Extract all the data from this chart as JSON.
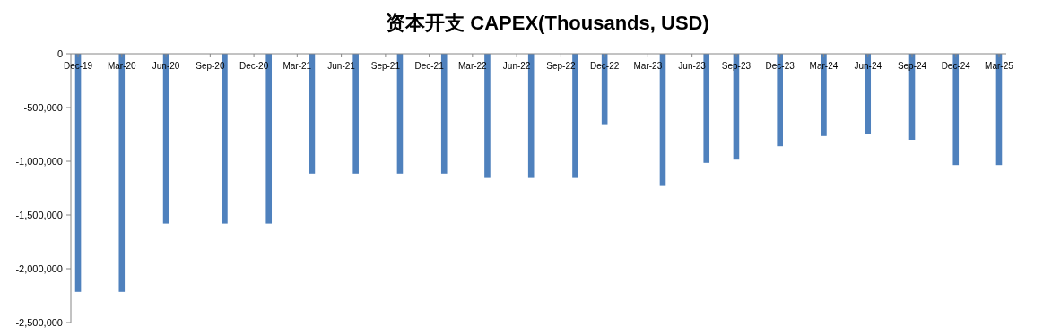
{
  "chart_data": {
    "type": "bar",
    "title": "资本开支 CAPEX(Thousands, USD)",
    "x": [
      "2019-12",
      "2020-03",
      "2020-06",
      "2020-10",
      "2021-01",
      "2021-04",
      "2021-07",
      "2021-10",
      "2022-01",
      "2022-04",
      "2022-07",
      "2022-10",
      "2022-12",
      "2023-04",
      "2023-07",
      "2023-09",
      "2023-12",
      "2024-03",
      "2024-06",
      "2024-09",
      "2024-12",
      "2025-03"
    ],
    "values": [
      -2215000,
      -2215000,
      -1580000,
      -1580000,
      -1580000,
      -1115000,
      -1115000,
      -1115000,
      -1115000,
      -1155000,
      -1155000,
      -1155000,
      -655000,
      -1230000,
      -1015000,
      -985000,
      -860000,
      -765000,
      -750000,
      -800000,
      -1035000,
      -1035000
    ],
    "color": "#4f81bd",
    "xlim": [
      "2019-11-16",
      "2025-03-16"
    ],
    "xticks": [
      {
        "value": "2019-12",
        "label": "Dec-19"
      },
      {
        "value": "2020-03",
        "label": "Mar-20"
      },
      {
        "value": "2020-06",
        "label": "Jun-20"
      },
      {
        "value": "2020-09",
        "label": "Sep-20"
      },
      {
        "value": "2020-12",
        "label": "Dec-20"
      },
      {
        "value": "2021-03",
        "label": "Mar-21"
      },
      {
        "value": "2021-06",
        "label": "Jun-21"
      },
      {
        "value": "2021-09",
        "label": "Sep-21"
      },
      {
        "value": "2021-12",
        "label": "Dec-21"
      },
      {
        "value": "2022-03",
        "label": "Mar-22"
      },
      {
        "value": "2022-06",
        "label": "Jun-22"
      },
      {
        "value": "2022-09",
        "label": "Sep-22"
      },
      {
        "value": "2022-12",
        "label": "Dec-22"
      },
      {
        "value": "2023-03",
        "label": "Mar-23"
      },
      {
        "value": "2023-06",
        "label": "Jun-23"
      },
      {
        "value": "2023-09",
        "label": "Sep-23"
      },
      {
        "value": "2023-12",
        "label": "Dec-23"
      },
      {
        "value": "2024-03",
        "label": "Mar-24"
      },
      {
        "value": "2024-06",
        "label": "Jun-24"
      },
      {
        "value": "2024-09",
        "label": "Sep-24"
      },
      {
        "value": "2024-12",
        "label": "Dec-24"
      },
      {
        "value": "2025-03",
        "label": "Mar-25"
      }
    ],
    "ylim": [
      -2500000,
      0
    ],
    "yticks": [
      0,
      {
        "value": -500000,
        "label": "-500,000"
      },
      {
        "value": -1000000,
        "label": "-1,000,000"
      },
      {
        "value": -1500000,
        "label": "-1,500,000"
      },
      {
        "value": -2000000,
        "label": "-2,000,000"
      },
      {
        "value": -2500000,
        "label": "-2,500,000"
      }
    ]
  }
}
